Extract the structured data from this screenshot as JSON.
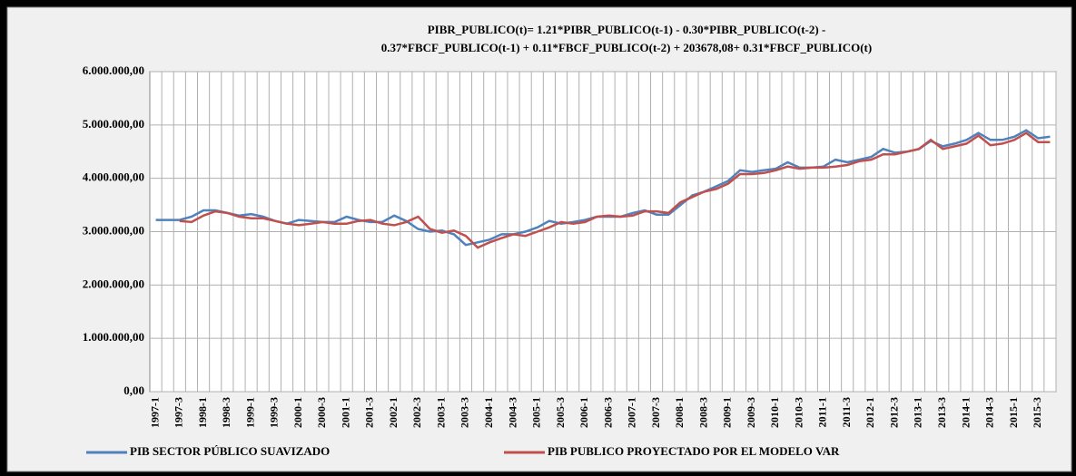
{
  "chart_data": {
    "type": "line",
    "title": [
      "PIBR_PUBLICO(t)=  1.21*PIBR_PUBLICO(t-1)  - 0.30*PIBR_PUBLICO(t-2)  -",
      "0.37*FBCF_PUBLICO(t-1)  + 0.11*FBCF_PUBLICO(t-2)  + 203678,08+ 0.31*FBCF_PUBLICO(t)"
    ],
    "categories": [
      "1997-1",
      null,
      "1997-3",
      null,
      "1998-1",
      null,
      "1998-3",
      null,
      "1999-1",
      null,
      "1999-3",
      null,
      "2000-1",
      null,
      "2000-3",
      null,
      "2001-1",
      null,
      "2001-3",
      null,
      "2002-1",
      null,
      "2002-3",
      null,
      "2003-1",
      null,
      "2003-3",
      null,
      "2004-1",
      null,
      "2004-3",
      null,
      "2005-1",
      null,
      "2005-3",
      null,
      "2006-1",
      null,
      "2006-3",
      null,
      "2007-1",
      null,
      "2007-3",
      null,
      "2008-1",
      null,
      "2008-3",
      null,
      "2009-1",
      null,
      "2009-3",
      null,
      "2010-1",
      null,
      "2010-3",
      null,
      "2011-1",
      null,
      "2011-3",
      null,
      "2012-1",
      null,
      "2012-3",
      null,
      "2013-1",
      null,
      "2013-3",
      null,
      "2014-1",
      null,
      "2014-3",
      null,
      "2015-1",
      null,
      "2015-3",
      null
    ],
    "series": [
      {
        "name": "PIB SECTOR PÚBLICO SUAVIZADO",
        "color": "#4f81bd",
        "values": [
          3220000,
          3220000,
          3220000,
          3280000,
          3400000,
          3400000,
          3350000,
          3300000,
          3330000,
          3280000,
          3200000,
          3150000,
          3220000,
          3200000,
          3180000,
          3180000,
          3280000,
          3220000,
          3180000,
          3180000,
          3300000,
          3200000,
          3050000,
          3000000,
          3020000,
          2950000,
          2750000,
          2800000,
          2850000,
          2950000,
          2950000,
          3000000,
          3080000,
          3200000,
          3150000,
          3180000,
          3220000,
          3280000,
          3280000,
          3280000,
          3350000,
          3400000,
          3320000,
          3320000,
          3500000,
          3680000,
          3750000,
          3850000,
          3950000,
          4150000,
          4120000,
          4150000,
          4180000,
          4300000,
          4200000,
          4200000,
          4220000,
          4350000,
          4300000,
          4350000,
          4400000,
          4550000,
          4480000,
          4500000,
          4550000,
          4700000,
          4600000,
          4650000,
          4720000,
          4850000,
          4720000,
          4720000,
          4780000,
          4900000,
          4750000,
          4780000
        ]
      },
      {
        "name": "PIB PUBLICO PROYECTADO POR EL MODELO VAR",
        "color": "#c0504d",
        "values": [
          null,
          null,
          3200000,
          3180000,
          3300000,
          3380000,
          3350000,
          3280000,
          3250000,
          3250000,
          3200000,
          3150000,
          3120000,
          3150000,
          3180000,
          3150000,
          3150000,
          3200000,
          3220000,
          3150000,
          3120000,
          3180000,
          3280000,
          3050000,
          2980000,
          3020000,
          2920000,
          2700000,
          2800000,
          2880000,
          2950000,
          2920000,
          3000000,
          3080000,
          3180000,
          3150000,
          3180000,
          3280000,
          3300000,
          3280000,
          3300000,
          3380000,
          3380000,
          3350000,
          3550000,
          3650000,
          3750000,
          3800000,
          3900000,
          4080000,
          4080000,
          4100000,
          4150000,
          4220000,
          4180000,
          4200000,
          4200000,
          4220000,
          4250000,
          4320000,
          4350000,
          4450000,
          4450000,
          4500000,
          4550000,
          4720000,
          4550000,
          4600000,
          4650000,
          4800000,
          4620000,
          4650000,
          4720000,
          4850000,
          4680000,
          4680000
        ]
      }
    ],
    "ylim": [
      0,
      6000000
    ],
    "yticks": [
      {
        "value": 0,
        "label": "0,00"
      },
      {
        "value": 1000000,
        "label": "1.000.000,00"
      },
      {
        "value": 2000000,
        "label": "2.000.000,00"
      },
      {
        "value": 3000000,
        "label": "3.000.000,00"
      },
      {
        "value": 4000000,
        "label": "4.000.000,00"
      },
      {
        "value": 5000000,
        "label": "5.000.000,00"
      },
      {
        "value": 6000000,
        "label": "6.000.000,00"
      }
    ],
    "grid": true,
    "legend": "bottom"
  }
}
